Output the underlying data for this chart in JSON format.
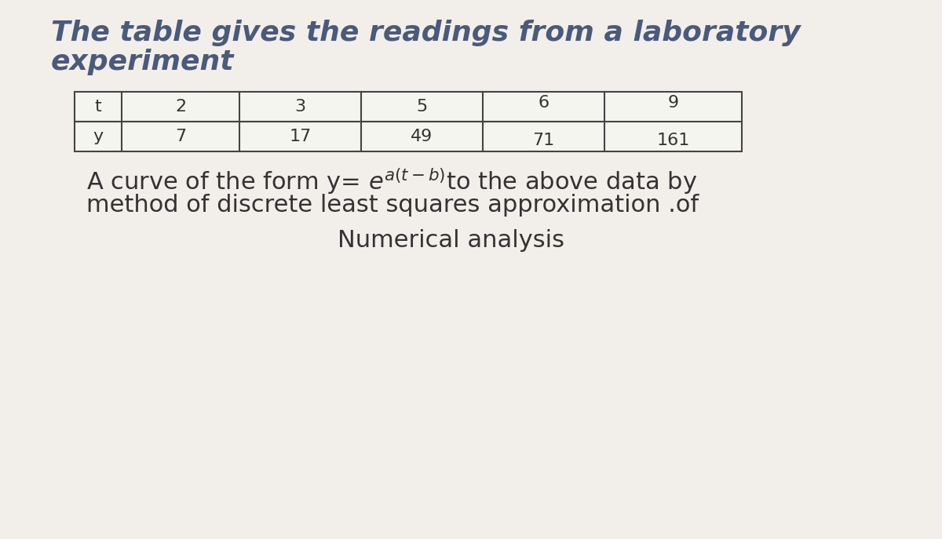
{
  "title_line1": "The table gives the readings from a laboratory",
  "title_line2": "experiment",
  "title_color": "#4a5a7a",
  "title_fontsize": 26,
  "table_t_row": [
    "t",
    "2",
    "3",
    "5",
    "6",
    "9"
  ],
  "table_y_row": [
    "y",
    "7",
    "17",
    "49",
    "71",
    "161"
  ],
  "table_text_color": "#333333",
  "table_fontsize": 16,
  "body_line1_prefix": "A curve of the form y= ",
  "body_line1_math": "e^{a(t-b)}",
  "body_line1_suffix": "to the above data by",
  "body_line2": "method of discrete least squares approximation .of",
  "body_line3": "Numerical analysis",
  "body_color": "#333333",
  "body_fontsize": 22,
  "fig_bg_color": "#f0ede8",
  "table_border_color": "#444444",
  "table_cell_bg": "#f5f5f0"
}
